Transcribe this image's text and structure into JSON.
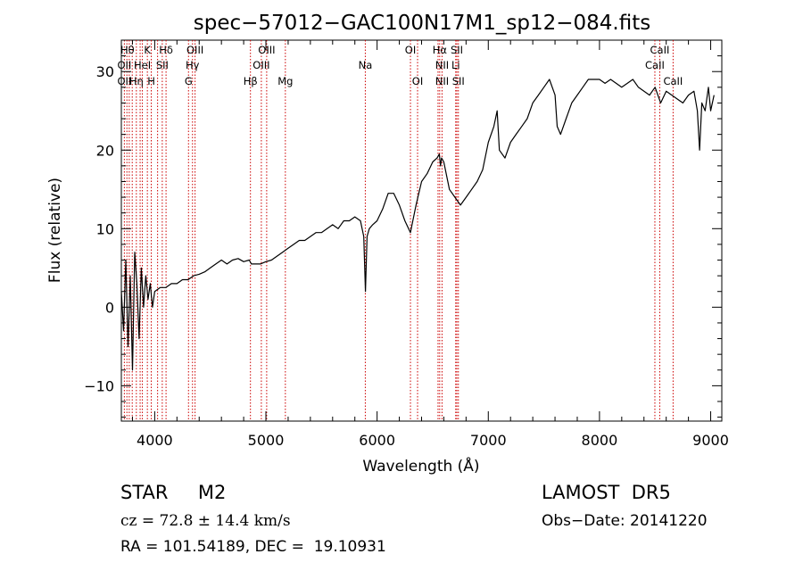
{
  "chart_data": {
    "type": "line",
    "title": "spec−57012−GAC100N17M1_sp12−084.fits",
    "xlabel": "Wavelength (Å)",
    "ylabel": "Flux (relative)",
    "xlim": [
      3700,
      9100
    ],
    "ylim": [
      -14.5,
      34
    ],
    "x_ticks": [
      4000,
      5000,
      6000,
      7000,
      8000,
      9000
    ],
    "x_tick_labels": [
      "4000",
      "5000",
      "6000",
      "7000",
      "8000",
      "9000"
    ],
    "y_ticks": [
      -10,
      0,
      10,
      20,
      30
    ],
    "y_tick_labels": [
      "−10",
      "0",
      "10",
      "20",
      "30"
    ],
    "grid": false,
    "line_color": "#000000",
    "marker_color": "#cc0000",
    "series": [
      {
        "x": [
          3700,
          3720,
          3740,
          3760,
          3780,
          3800,
          3820,
          3840,
          3860,
          3880,
          3900,
          3920,
          3940,
          3960,
          3980,
          4000,
          4050,
          4100,
          4150,
          4200,
          4250,
          4300,
          4350,
          4400,
          4450,
          4500,
          4550,
          4600,
          4650,
          4700,
          4750,
          4800,
          4850,
          4870,
          4900,
          4950,
          5000,
          5050,
          5100,
          5150,
          5200,
          5250,
          5300,
          5350,
          5400,
          5450,
          5500,
          5550,
          5600,
          5650,
          5700,
          5750,
          5800,
          5850,
          5880,
          5895,
          5910,
          5930,
          5960,
          6000,
          6050,
          6100,
          6150,
          6200,
          6250,
          6300,
          6350,
          6400,
          6450,
          6500,
          6540,
          6560,
          6570,
          6580,
          6600,
          6650,
          6700,
          6750,
          6800,
          6850,
          6900,
          6950,
          7000,
          7050,
          7080,
          7100,
          7150,
          7200,
          7250,
          7300,
          7350,
          7400,
          7450,
          7500,
          7550,
          7600,
          7620,
          7650,
          7700,
          7750,
          7800,
          7850,
          7900,
          7950,
          8000,
          8050,
          8100,
          8150,
          8200,
          8250,
          8300,
          8350,
          8400,
          8450,
          8500,
          8550,
          8600,
          8650,
          8700,
          8750,
          8800,
          8850,
          8880,
          8900,
          8920,
          8950,
          8980,
          9000,
          9030
        ],
        "y": [
          2,
          -3,
          6,
          -5,
          4,
          -8,
          7,
          3,
          -4,
          5,
          0,
          4,
          1,
          3,
          0,
          2,
          2.5,
          2.5,
          3,
          3,
          3.5,
          3.5,
          4,
          4.2,
          4.5,
          5,
          5.5,
          6,
          5.5,
          6,
          6.2,
          5.8,
          6,
          5.5,
          5.5,
          5.5,
          5.8,
          6,
          6.5,
          7,
          7.5,
          8,
          8.5,
          8.5,
          9,
          9.5,
          9.5,
          10,
          10.5,
          10,
          11,
          11,
          11.5,
          11,
          9,
          2,
          9,
          10,
          10.5,
          11,
          12.5,
          14.5,
          14.5,
          13,
          11,
          9.5,
          13,
          16,
          17,
          18.5,
          19,
          19.5,
          18,
          19,
          18.5,
          15,
          14,
          13,
          14,
          15,
          16,
          17.5,
          21,
          23,
          25,
          20,
          19,
          21,
          22,
          23,
          24,
          26,
          27,
          28,
          29,
          27,
          23,
          22,
          24,
          26,
          27,
          28,
          29,
          29,
          29,
          28.5,
          29,
          28.5,
          28,
          28.5,
          29,
          28,
          27.5,
          27,
          28,
          26,
          27.5,
          27,
          26.5,
          26,
          27,
          27.5,
          25,
          20,
          26,
          25,
          28,
          25,
          27
        ]
      }
    ],
    "line_markers": [
      {
        "x": 3727
      },
      {
        "x": 3750
      },
      {
        "x": 3771
      },
      {
        "x": 3798
      },
      {
        "x": 3835
      },
      {
        "x": 3869
      },
      {
        "x": 3889
      },
      {
        "x": 3934
      },
      {
        "x": 3969
      },
      {
        "x": 4026
      },
      {
        "x": 4068
      },
      {
        "x": 4102
      },
      {
        "x": 4304
      },
      {
        "x": 4340
      },
      {
        "x": 4363
      },
      {
        "x": 4861
      },
      {
        "x": 4959
      },
      {
        "x": 5007
      },
      {
        "x": 5175
      },
      {
        "x": 5894
      },
      {
        "x": 6300
      },
      {
        "x": 6364
      },
      {
        "x": 6548
      },
      {
        "x": 6563
      },
      {
        "x": 6584
      },
      {
        "x": 6707
      },
      {
        "x": 6717
      },
      {
        "x": 6731
      },
      {
        "x": 8498
      },
      {
        "x": 8542
      },
      {
        "x": 8662
      }
    ],
    "line_labels": [
      {
        "text": "Hθ",
        "x": 3755,
        "row": 1
      },
      {
        "text": "K",
        "x": 3934,
        "row": 1
      },
      {
        "text": "Hδ",
        "x": 4102,
        "row": 1
      },
      {
        "text": "OIII",
        "x": 4363,
        "row": 1
      },
      {
        "text": "OIII",
        "x": 5007,
        "row": 1
      },
      {
        "text": "OI",
        "x": 6300,
        "row": 1
      },
      {
        "text": "Hα",
        "x": 6563,
        "row": 1
      },
      {
        "text": "SII",
        "x": 6717,
        "row": 1
      },
      {
        "text": "CaII",
        "x": 8542,
        "row": 1
      },
      {
        "text": "OII",
        "x": 3727,
        "row": 2
      },
      {
        "text": "HeI",
        "x": 3889,
        "row": 2
      },
      {
        "text": "SII",
        "x": 4068,
        "row": 2
      },
      {
        "text": "Hγ",
        "x": 4340,
        "row": 2
      },
      {
        "text": "OIII",
        "x": 4959,
        "row": 2
      },
      {
        "text": "NII",
        "x": 6584,
        "row": 2
      },
      {
        "text": "Li",
        "x": 6707,
        "row": 2
      },
      {
        "text": "CaII",
        "x": 8498,
        "row": 2
      },
      {
        "text": "OII",
        "x": 3727,
        "row": 3
      },
      {
        "text": "Hη",
        "x": 3835,
        "row": 3
      },
      {
        "text": "H",
        "x": 3969,
        "row": 3
      },
      {
        "text": "G",
        "x": 4304,
        "row": 3
      },
      {
        "text": "Hβ",
        "x": 4861,
        "row": 3
      },
      {
        "text": "Mg",
        "x": 5175,
        "row": 3
      },
      {
        "text": "Na",
        "x": 5894,
        "row": 2
      },
      {
        "text": "OI",
        "x": 6364,
        "row": 3
      },
      {
        "text": "NII",
        "x": 6584,
        "row": 3
      },
      {
        "text": "SII",
        "x": 6731,
        "row": 3
      },
      {
        "text": "CaII",
        "x": 8662,
        "row": 3
      }
    ]
  },
  "info": {
    "object_class": "STAR     M2",
    "survey": "LAMOST  DR5",
    "redshift": "cz = 72.8 ± 14.4 km/s",
    "obs_date": "Obs−Date: 20141220",
    "coords": "RA = 101.54189, DEC =  19.10931"
  }
}
